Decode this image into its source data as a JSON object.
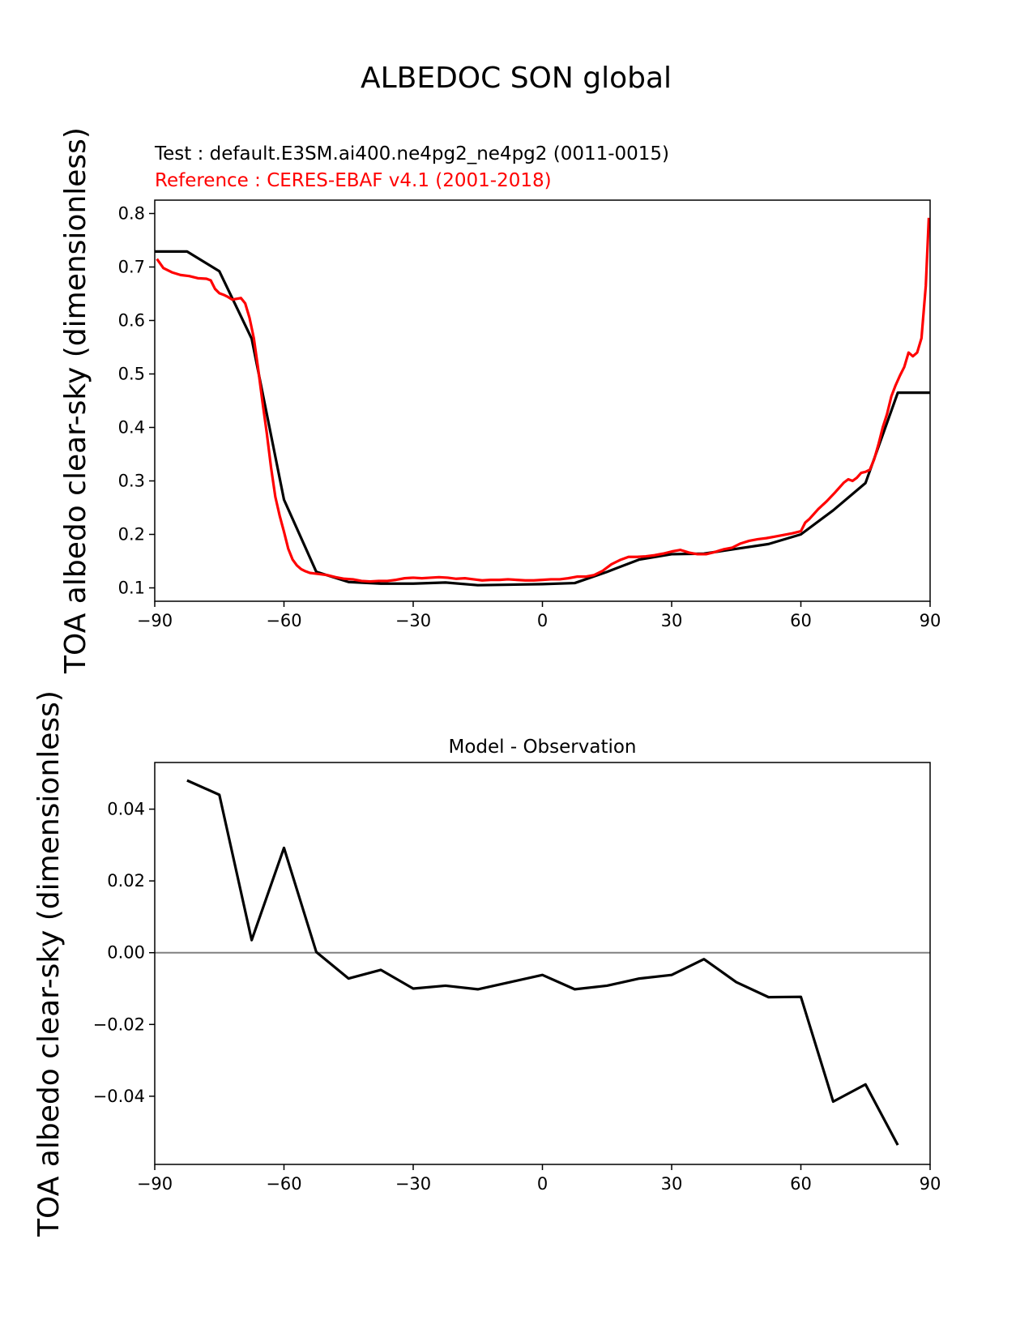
{
  "figure": {
    "title": "ALBEDOC SON global",
    "test_label": "Test : default.E3SM.ai400.ne4pg2_ne4pg2 (0011-0015)",
    "reference_label": "Reference : CERES-EBAF v4.1 (2001-2018)",
    "colors": {
      "test": "#000000",
      "reference": "#ff0000",
      "zero_line": "#808080"
    }
  },
  "chart_data": [
    {
      "type": "line",
      "title": "",
      "xlabel": "",
      "ylabel": "TOA albedo clear-sky (dimensionless)",
      "xlim": [
        -90,
        90
      ],
      "ylim": [
        0.075,
        0.825
      ],
      "xticks": [
        -90,
        -60,
        -30,
        0,
        30,
        60,
        90
      ],
      "xtick_labels": [
        "−90",
        "−60",
        "−30",
        "0",
        "30",
        "60",
        "90"
      ],
      "yticks": [
        0.1,
        0.2,
        0.3,
        0.4,
        0.5,
        0.6,
        0.7,
        0.8
      ],
      "ytick_labels": [
        "0.1",
        "0.2",
        "0.3",
        "0.4",
        "0.5",
        "0.6",
        "0.7",
        "0.8"
      ],
      "series": [
        {
          "role": "test",
          "x": [
            -90,
            -82.5,
            -75,
            -67.5,
            -60,
            -52.5,
            -45,
            -37.5,
            -30,
            -22.5,
            -15,
            -7.5,
            0,
            7.5,
            15,
            22.5,
            30,
            37.5,
            45,
            52.5,
            60,
            67.5,
            75,
            82.5,
            90
          ],
          "y": [
            0.729,
            0.729,
            0.692,
            0.566,
            0.265,
            0.13,
            0.111,
            0.108,
            0.108,
            0.11,
            0.105,
            0.106,
            0.107,
            0.109,
            0.13,
            0.153,
            0.163,
            0.164,
            0.173,
            0.182,
            0.2,
            0.245,
            0.296,
            0.465,
            0.465
          ]
        },
        {
          "role": "reference",
          "x": [
            -89.5,
            -88,
            -86,
            -84,
            -82,
            -80,
            -78,
            -77,
            -76,
            -75,
            -74,
            -73,
            -72,
            -70,
            -69,
            -68,
            -67,
            -66,
            -65,
            -64,
            -63,
            -62,
            -61,
            -60,
            -59,
            -58,
            -57,
            -56,
            -55,
            -54,
            -53,
            -52,
            -50,
            -48,
            -46,
            -44,
            -42,
            -40,
            -38,
            -36,
            -34,
            -32,
            -30,
            -28,
            -26,
            -24,
            -22,
            -20,
            -18,
            -16,
            -14,
            -12,
            -10,
            -8,
            -6,
            -4,
            -2,
            0,
            2,
            4,
            6,
            8,
            10,
            12,
            14,
            16,
            18,
            20,
            22,
            24,
            26,
            28,
            30,
            32,
            34,
            36,
            38,
            40,
            42,
            44,
            46,
            48,
            50,
            52,
            54,
            56,
            58,
            60,
            61,
            62,
            64,
            66,
            68,
            70,
            71,
            72,
            73,
            74,
            75,
            76,
            77,
            78,
            79,
            80,
            81,
            82,
            83,
            84,
            85,
            86,
            87,
            88,
            89,
            89.7
          ],
          "y": [
            0.715,
            0.698,
            0.69,
            0.685,
            0.683,
            0.679,
            0.678,
            0.675,
            0.659,
            0.651,
            0.648,
            0.644,
            0.639,
            0.642,
            0.632,
            0.605,
            0.567,
            0.51,
            0.448,
            0.39,
            0.325,
            0.27,
            0.235,
            0.205,
            0.173,
            0.153,
            0.142,
            0.135,
            0.131,
            0.128,
            0.127,
            0.126,
            0.124,
            0.12,
            0.117,
            0.116,
            0.113,
            0.112,
            0.113,
            0.113,
            0.115,
            0.118,
            0.119,
            0.118,
            0.119,
            0.12,
            0.119,
            0.117,
            0.118,
            0.116,
            0.114,
            0.115,
            0.115,
            0.116,
            0.115,
            0.114,
            0.114,
            0.115,
            0.116,
            0.116,
            0.118,
            0.121,
            0.121,
            0.124,
            0.132,
            0.144,
            0.152,
            0.158,
            0.158,
            0.159,
            0.161,
            0.164,
            0.168,
            0.171,
            0.166,
            0.163,
            0.163,
            0.167,
            0.172,
            0.175,
            0.183,
            0.188,
            0.191,
            0.193,
            0.196,
            0.199,
            0.202,
            0.206,
            0.222,
            0.229,
            0.247,
            0.262,
            0.279,
            0.297,
            0.303,
            0.3,
            0.306,
            0.315,
            0.317,
            0.321,
            0.34,
            0.368,
            0.4,
            0.425,
            0.458,
            0.479,
            0.497,
            0.513,
            0.54,
            0.533,
            0.54,
            0.567,
            0.665,
            0.792
          ]
        }
      ]
    },
    {
      "type": "line",
      "title": "Model - Observation",
      "xlabel": "",
      "ylabel": "TOA albedo clear-sky (dimensionless)",
      "xlim": [
        -90,
        90
      ],
      "ylim": [
        -0.059,
        0.053
      ],
      "xticks": [
        -90,
        -60,
        -30,
        0,
        30,
        60,
        90
      ],
      "xtick_labels": [
        "−90",
        "−60",
        "−30",
        "0",
        "30",
        "60",
        "90"
      ],
      "yticks": [
        -0.04,
        -0.02,
        0,
        0.02,
        0.04
      ],
      "ytick_labels": [
        "−0.04",
        "−0.02",
        "0.00",
        "0.02",
        "0.04"
      ],
      "zero_line": true,
      "series": [
        {
          "role": "difference",
          "x": [
            -82.5,
            -75,
            -67.5,
            -60,
            -52.5,
            -45,
            -37.5,
            -30,
            -22.5,
            -15,
            -7.5,
            0,
            7.5,
            15,
            22.5,
            30,
            37.5,
            45,
            52.5,
            60,
            67.5,
            75,
            82.5
          ],
          "y": [
            0.048,
            0.044,
            0.0035,
            0.0292,
            0.0002,
            -0.0072,
            -0.0048,
            -0.01,
            -0.0092,
            -0.0102,
            -0.0082,
            -0.0062,
            -0.0102,
            -0.0092,
            -0.0072,
            -0.0062,
            -0.0018,
            -0.0082,
            -0.0124,
            -0.0123,
            -0.0415,
            -0.0367,
            -0.0536
          ]
        }
      ]
    }
  ]
}
